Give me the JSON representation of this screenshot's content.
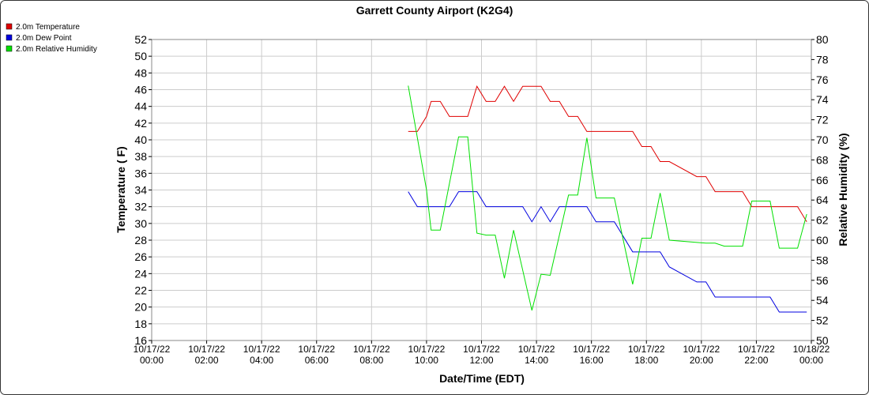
{
  "chart_data": {
    "type": "line",
    "title": "Garrett County Airport (K2G4)",
    "xlabel": "Date/Time (EDT)",
    "ylabel": "Temperature ( F)",
    "y2label": "Relative Humidity (%)",
    "grid": true,
    "legend": "top-left",
    "xlim": [
      "10/17/22 00:00",
      "10/18/22 00:00"
    ],
    "xticks": [
      "10/17/22 00:00",
      "10/17/22 02:00",
      "10/17/22 04:00",
      "10/17/22 06:00",
      "10/17/22 08:00",
      "10/17/22 10:00",
      "10/17/22 12:00",
      "10/17/22 14:00",
      "10/17/22 16:00",
      "10/17/22 18:00",
      "10/17/22 20:00",
      "10/17/22 22:00",
      "10/18/22 00:00"
    ],
    "ylim": [
      16,
      52
    ],
    "yticks": [
      16,
      18,
      20,
      22,
      24,
      26,
      28,
      30,
      32,
      34,
      36,
      38,
      40,
      42,
      44,
      46,
      48,
      50,
      52
    ],
    "y2lim": [
      50,
      80
    ],
    "y2ticks": [
      50,
      52,
      54,
      56,
      58,
      60,
      62,
      64,
      66,
      68,
      70,
      72,
      74,
      76,
      78,
      80
    ],
    "series": [
      {
        "name": "2.0m Temperature",
        "color": "#e00000",
        "axis": "y",
        "x": [
          "10/17/22 09:20",
          "10/17/22 09:40",
          "10/17/22 10:00",
          "10/17/22 10:10",
          "10/17/22 10:30",
          "10/17/22 10:50",
          "10/17/22 11:30",
          "10/17/22 11:50",
          "10/17/22 12:10",
          "10/17/22 12:30",
          "10/17/22 12:50",
          "10/17/22 13:10",
          "10/17/22 13:30",
          "10/17/22 14:10",
          "10/17/22 14:30",
          "10/17/22 14:50",
          "10/17/22 15:10",
          "10/17/22 15:30",
          "10/17/22 15:50",
          "10/17/22 17:30",
          "10/17/22 17:50",
          "10/17/22 18:10",
          "10/17/22 18:30",
          "10/17/22 18:50",
          "10/17/22 19:50",
          "10/17/22 20:10",
          "10/17/22 20:30",
          "10/17/22 21:30",
          "10/17/22 21:50",
          "10/17/22 23:30",
          "10/17/22 23:50"
        ],
        "values": [
          41,
          41,
          42.8,
          44.6,
          44.6,
          42.8,
          42.8,
          46.4,
          44.6,
          44.6,
          46.4,
          44.6,
          46.4,
          46.4,
          44.6,
          44.6,
          42.8,
          42.8,
          41,
          41,
          39.2,
          39.2,
          37.4,
          37.4,
          35.6,
          35.6,
          33.8,
          33.8,
          32,
          32,
          30.2
        ]
      },
      {
        "name": "2.0m Dew Point",
        "color": "#0000e0",
        "axis": "y",
        "x": [
          "10/17/22 09:20",
          "10/17/22 09:40",
          "10/17/22 10:50",
          "10/17/22 11:10",
          "10/17/22 11:50",
          "10/17/22 12:10",
          "10/17/22 13:30",
          "10/17/22 13:50",
          "10/17/22 14:10",
          "10/17/22 14:30",
          "10/17/22 14:50",
          "10/17/22 15:50",
          "10/17/22 16:10",
          "10/17/22 16:50",
          "10/17/22 17:30",
          "10/17/22 18:30",
          "10/17/22 18:50",
          "10/17/22 19:50",
          "10/17/22 20:10",
          "10/17/22 20:30",
          "10/17/22 22:30",
          "10/17/22 22:50",
          "10/17/22 23:50"
        ],
        "values": [
          33.8,
          32,
          32,
          33.8,
          33.8,
          32,
          32,
          30.2,
          32,
          30.2,
          32,
          32,
          30.2,
          30.2,
          26.6,
          26.6,
          24.8,
          23,
          23,
          21.2,
          21.2,
          19.4,
          19.4
        ]
      },
      {
        "name": "2.0m Relative Humidity",
        "color": "#00e000",
        "axis": "y2",
        "x": [
          "10/17/22 09:20",
          "10/17/22 10:00",
          "10/17/22 10:10",
          "10/17/22 10:30",
          "10/17/22 11:10",
          "10/17/22 11:30",
          "10/17/22 11:50",
          "10/17/22 12:10",
          "10/17/22 12:30",
          "10/17/22 12:50",
          "10/17/22 13:10",
          "10/17/22 13:50",
          "10/17/22 14:10",
          "10/17/22 14:30",
          "10/17/22 15:10",
          "10/17/22 15:30",
          "10/17/22 15:50",
          "10/17/22 16:10",
          "10/17/22 16:50",
          "10/17/22 17:30",
          "10/17/22 17:50",
          "10/17/22 18:10",
          "10/17/22 18:30",
          "10/17/22 18:50",
          "10/17/22 20:10",
          "10/17/22 20:30",
          "10/17/22 20:50",
          "10/17/22 21:30",
          "10/17/22 21:50",
          "10/17/22 22:30",
          "10/17/22 22:50",
          "10/17/22 23:30",
          "10/17/22 23:50"
        ],
        "values": [
          75.4,
          65,
          61,
          61,
          70.3,
          70.3,
          60.7,
          60.5,
          60.5,
          56.2,
          61,
          53,
          56.6,
          56.5,
          64.5,
          64.5,
          70.2,
          64.2,
          64.2,
          55.6,
          60.2,
          60.2,
          64.7,
          60,
          59.7,
          59.7,
          59.4,
          59.4,
          63.9,
          63.9,
          59.2,
          59.2,
          62.6
        ]
      }
    ]
  }
}
